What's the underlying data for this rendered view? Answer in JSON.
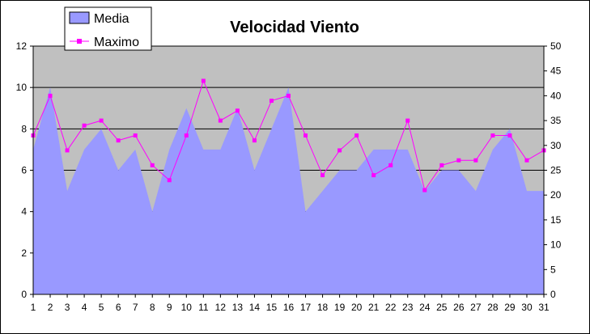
{
  "chart_data": {
    "type": "area",
    "title": "Velocidad Viento",
    "x": [
      1,
      2,
      3,
      4,
      5,
      6,
      7,
      8,
      9,
      10,
      11,
      12,
      13,
      14,
      15,
      16,
      17,
      18,
      19,
      20,
      21,
      22,
      23,
      24,
      25,
      26,
      27,
      28,
      29,
      30,
      31
    ],
    "series": [
      {
        "name": "Media",
        "type": "area",
        "axis": "left",
        "values": [
          7,
          10,
          5,
          7,
          8,
          6,
          7,
          4,
          7,
          9,
          7,
          7,
          9,
          6,
          8,
          10,
          4,
          5,
          6,
          6,
          7,
          7,
          7,
          5,
          6,
          6,
          5,
          7,
          8,
          5,
          5
        ]
      },
      {
        "name": "Maximo",
        "type": "line",
        "axis": "right",
        "values": [
          32,
          40,
          29,
          34,
          35,
          31,
          32,
          26,
          23,
          32,
          43,
          35,
          37,
          31,
          39,
          40,
          32,
          24,
          29,
          32,
          24,
          26,
          35,
          21,
          26,
          27,
          27,
          32,
          32,
          27,
          29
        ]
      }
    ],
    "ylim_left": [
      0,
      12
    ],
    "yticks_left": [
      "0",
      "2",
      "4",
      "6",
      "8",
      "10",
      "12"
    ],
    "ylim_right": [
      0,
      50
    ],
    "yticks_right": [
      "0",
      "5",
      "10",
      "15",
      "20",
      "25",
      "30",
      "35",
      "40",
      "45",
      "50"
    ],
    "grid": true,
    "legend_position": "top-left",
    "colors": {
      "plot_background": "#c0c0c0",
      "area_fill": "#9999ff",
      "line": "#ff00ff",
      "grid": "#000000"
    }
  }
}
